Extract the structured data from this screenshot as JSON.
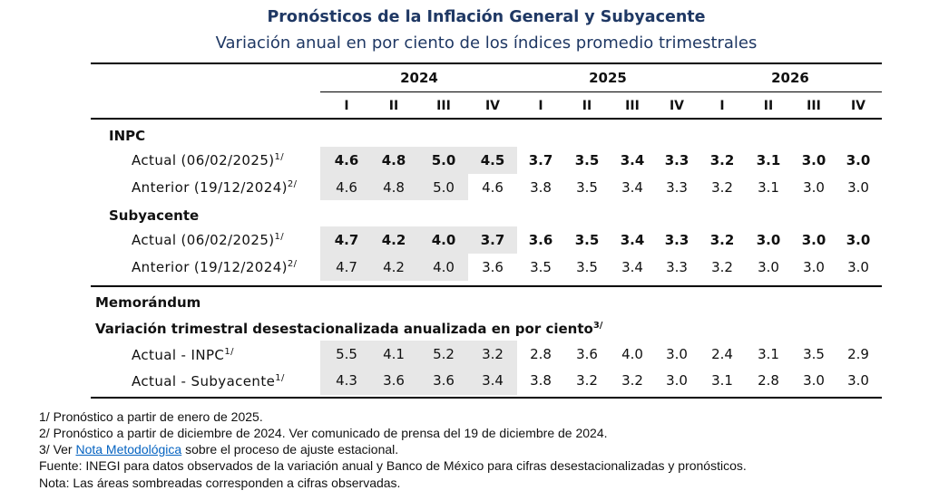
{
  "title": "Pronósticos de la Inflación General y Subyacente",
  "subtitle": "Variación anual en por ciento de los índices promedio trimestrales",
  "years": [
    "2024",
    "2025",
    "2026"
  ],
  "quarters": [
    "I",
    "II",
    "III",
    "IV",
    "I",
    "II",
    "III",
    "IV",
    "I",
    "II",
    "III",
    "IV"
  ],
  "sections": {
    "inpc": {
      "label": "INPC",
      "actual": {
        "label": "Actual (06/02/2025)",
        "note": "1/",
        "values": [
          "4.6",
          "4.8",
          "5.0",
          "4.5",
          "3.7",
          "3.5",
          "3.4",
          "3.3",
          "3.2",
          "3.1",
          "3.0",
          "3.0"
        ]
      },
      "anterior": {
        "label": "Anterior (19/12/2024)",
        "note": "2/",
        "values": [
          "4.6",
          "4.8",
          "5.0",
          "4.6",
          "3.8",
          "3.5",
          "3.4",
          "3.3",
          "3.2",
          "3.1",
          "3.0",
          "3.0"
        ]
      }
    },
    "subyacente": {
      "label": "Subyacente",
      "actual": {
        "label": "Actual (06/02/2025)",
        "note": "1/",
        "values": [
          "4.7",
          "4.2",
          "4.0",
          "3.7",
          "3.6",
          "3.5",
          "3.4",
          "3.3",
          "3.2",
          "3.0",
          "3.0",
          "3.0"
        ]
      },
      "anterior": {
        "label": "Anterior (19/12/2024)",
        "note": "2/",
        "values": [
          "4.7",
          "4.2",
          "4.0",
          "3.6",
          "3.5",
          "3.5",
          "3.4",
          "3.3",
          "3.2",
          "3.0",
          "3.0",
          "3.0"
        ]
      }
    }
  },
  "memo": {
    "label": "Memorándum",
    "subtitle": "Variación trimestral desestacionalizada anualizada en por ciento",
    "subtitle_note": "3/",
    "inpc": {
      "label": "Actual - INPC",
      "note": "1/",
      "values": [
        "5.5",
        "4.1",
        "5.2",
        "3.2",
        "2.8",
        "3.6",
        "4.0",
        "3.0",
        "2.4",
        "3.1",
        "3.5",
        "2.9"
      ]
    },
    "subyacente": {
      "label": "Actual - Subyacente",
      "note": "1/",
      "values": [
        "4.3",
        "3.6",
        "3.6",
        "3.4",
        "3.8",
        "3.2",
        "3.2",
        "3.0",
        "3.1",
        "2.8",
        "3.0",
        "3.0"
      ]
    }
  },
  "footnotes": {
    "f1": "1/ Pronóstico a partir de enero de 2025.",
    "f2": "2/ Pronóstico a partir de diciembre de 2024. Ver comunicado de prensa del 19 de diciembre de 2024.",
    "f3_prefix": "3/ Ver ",
    "f3_link": "Nota Metodológica",
    "f3_suffix": " sobre el proceso de ajuste estacional.",
    "fuente": "Fuente: INEGI para datos observados de la variación anual y Banco de México para cifras desestacionalizadas y pronósticos.",
    "nota": "Nota: Las áreas sombreadas corresponden a cifras observadas."
  },
  "colors": {
    "title": "#1f3864",
    "shade": "#e7e7e7",
    "link": "#0563c1"
  }
}
